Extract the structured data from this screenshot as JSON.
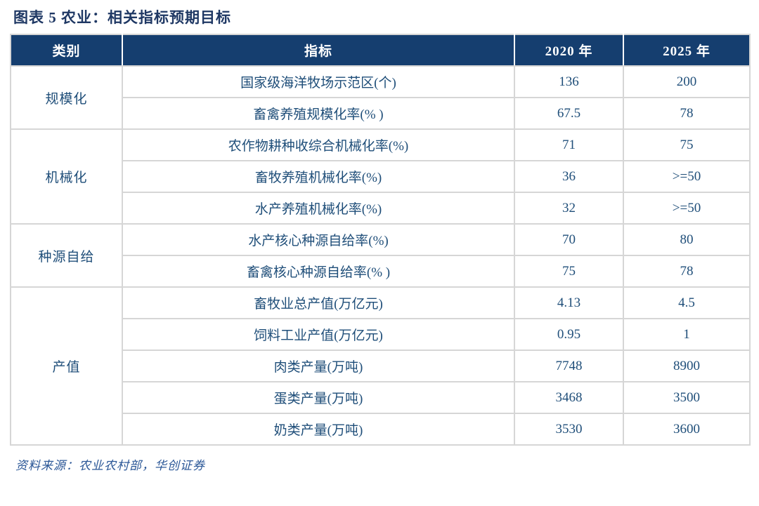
{
  "title": "图表 5  农业：相关指标预期目标",
  "source": "资料来源：农业农村部，华创证券",
  "colors": {
    "header_bg": "#153e6f",
    "header_text": "#ffffff",
    "body_text": "#1f4e79",
    "title_text": "#1f3864",
    "border": "#d6d6d6",
    "source_text": "#2b5797"
  },
  "table": {
    "headers": [
      "类别",
      "指标",
      "2020 年",
      "2025 年"
    ],
    "groups": [
      {
        "category": "规模化",
        "rows": [
          {
            "indicator": "国家级海洋牧场示范区(个)",
            "y2020": "136",
            "y2025": "200"
          },
          {
            "indicator": "畜禽养殖规模化率(% )",
            "y2020": "67.5",
            "y2025": "78"
          }
        ]
      },
      {
        "category": "机械化",
        "rows": [
          {
            "indicator": "农作物耕种收综合机械化率(%)",
            "y2020": "71",
            "y2025": "75"
          },
          {
            "indicator": "畜牧养殖机械化率(%)",
            "y2020": "36",
            "y2025": ">=50"
          },
          {
            "indicator": "水产养殖机械化率(%)",
            "y2020": "32",
            "y2025": ">=50"
          }
        ]
      },
      {
        "category": "种源自给",
        "rows": [
          {
            "indicator": "水产核心种源自给率(%)",
            "y2020": "70",
            "y2025": "80"
          },
          {
            "indicator": "畜禽核心种源自给率(% )",
            "y2020": "75",
            "y2025": "78"
          }
        ]
      },
      {
        "category": "产值",
        "rows": [
          {
            "indicator": "畜牧业总产值(万亿元)",
            "y2020": "4.13",
            "y2025": "4.5"
          },
          {
            "indicator": "饲料工业产值(万亿元)",
            "y2020": "0.95",
            "y2025": "1"
          },
          {
            "indicator": "肉类产量(万吨)",
            "y2020": "7748",
            "y2025": "8900"
          },
          {
            "indicator": "蛋类产量(万吨)",
            "y2020": "3468",
            "y2025": "3500"
          },
          {
            "indicator": "奶类产量(万吨)",
            "y2020": "3530",
            "y2025": "3600"
          }
        ]
      }
    ]
  },
  "chart_data": {
    "type": "table",
    "title": "图表 5  农业：相关指标预期目标",
    "columns": [
      "类别",
      "指标",
      "2020 年",
      "2025 年"
    ],
    "rows": [
      [
        "规模化",
        "国家级海洋牧场示范区(个)",
        "136",
        "200"
      ],
      [
        "规模化",
        "畜禽养殖规模化率(% )",
        "67.5",
        "78"
      ],
      [
        "机械化",
        "农作物耕种收综合机械化率(%)",
        "71",
        "75"
      ],
      [
        "机械化",
        "畜牧养殖机械化率(%)",
        "36",
        ">=50"
      ],
      [
        "机械化",
        "水产养殖机械化率(%)",
        "32",
        ">=50"
      ],
      [
        "种源自给",
        "水产核心种源自给率(%)",
        "70",
        "80"
      ],
      [
        "种源自给",
        "畜禽核心种源自给率(% )",
        "75",
        "78"
      ],
      [
        "产值",
        "畜牧业总产值(万亿元)",
        "4.13",
        "4.5"
      ],
      [
        "产值",
        "饲料工业产值(万亿元)",
        "0.95",
        "1"
      ],
      [
        "产值",
        "肉类产量(万吨)",
        "7748",
        "8900"
      ],
      [
        "产值",
        "蛋类产量(万吨)",
        "3468",
        "3500"
      ],
      [
        "产值",
        "奶类产量(万吨)",
        "3530",
        "3600"
      ]
    ],
    "footnote": "资料来源：农业农村部，华创证券"
  }
}
